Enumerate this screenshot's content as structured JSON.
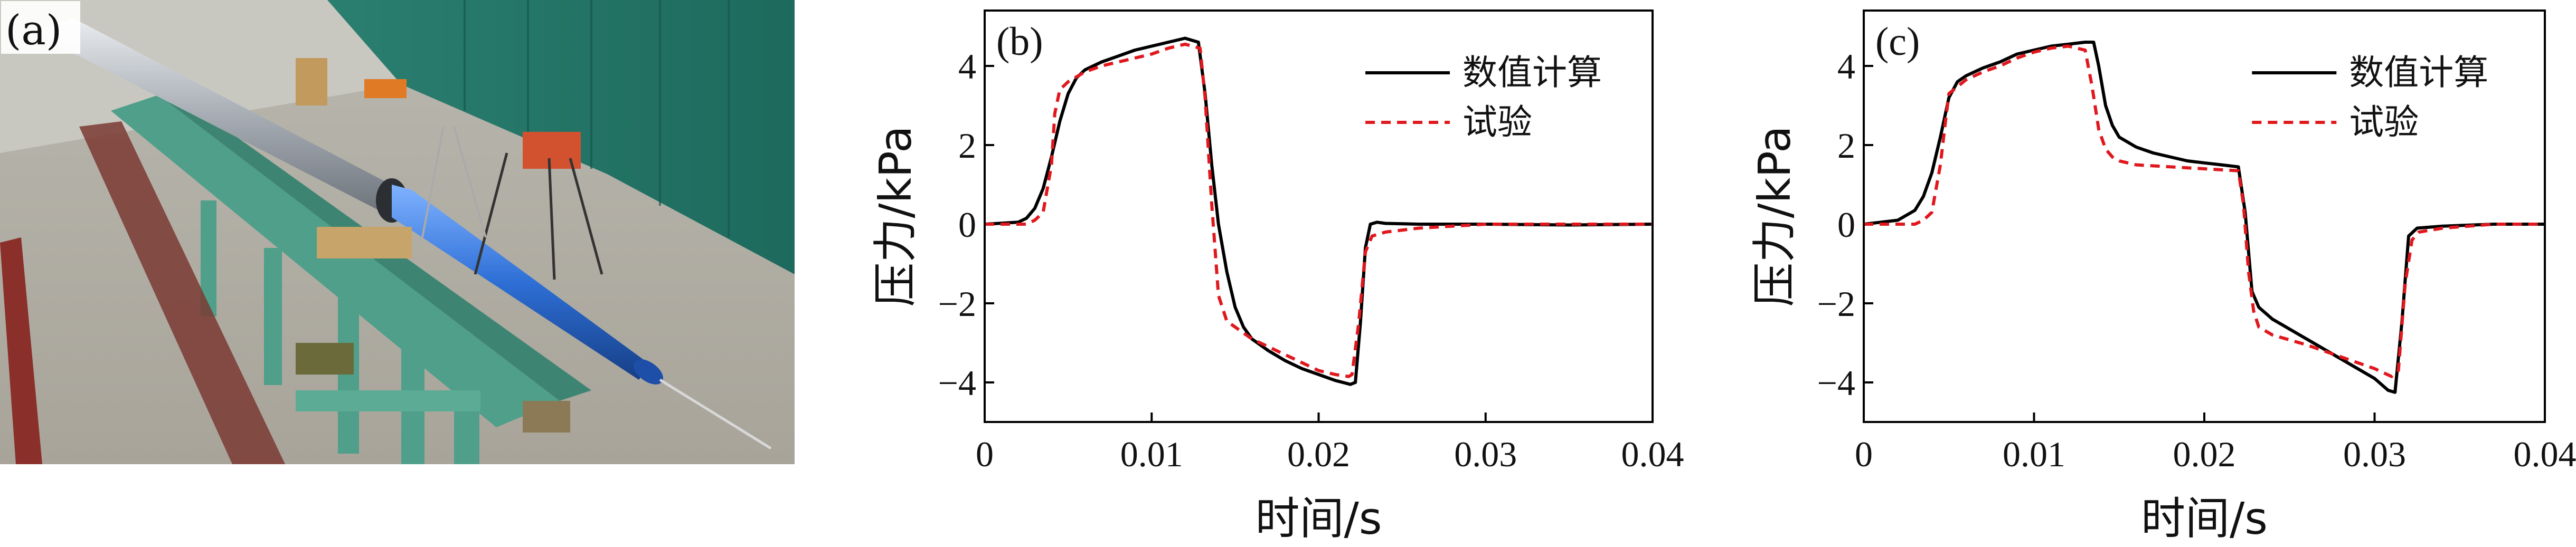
{
  "photo": {
    "label": "(a)"
  },
  "chart_data": [
    {
      "type": "line",
      "panel_label": "(b)",
      "xlabel": "时间/s",
      "ylabel": "压力/kPa",
      "xlim": [
        0,
        0.04
      ],
      "ylim": [
        -5,
        5.4
      ],
      "xticks": [
        0,
        0.01,
        0.02,
        0.03,
        0.04
      ],
      "xtick_labels": [
        "0",
        "0.01",
        "0.02",
        "0.03",
        "0.04"
      ],
      "yticks": [
        -4,
        -2,
        0,
        2,
        4
      ],
      "ytick_labels": [
        "−4",
        "−2",
        "0",
        "2",
        "4"
      ],
      "legend_position": "top-right",
      "series": [
        {
          "name": "数值计算",
          "color": "#000000",
          "style": "solid",
          "x": [
            0,
            0.002,
            0.0025,
            0.003,
            0.0035,
            0.004,
            0.0045,
            0.005,
            0.0055,
            0.006,
            0.007,
            0.008,
            0.009,
            0.01,
            0.011,
            0.012,
            0.0128,
            0.0132,
            0.0136,
            0.014,
            0.0145,
            0.015,
            0.0155,
            0.016,
            0.017,
            0.018,
            0.019,
            0.02,
            0.021,
            0.0219,
            0.0222,
            0.0225,
            0.0228,
            0.0231,
            0.0235,
            0.024,
            0.026,
            0.03,
            0.035,
            0.04
          ],
          "values": [
            0,
            0.05,
            0.15,
            0.4,
            0.9,
            1.7,
            2.6,
            3.3,
            3.7,
            3.9,
            4.1,
            4.25,
            4.4,
            4.5,
            4.6,
            4.7,
            4.6,
            3.3,
            1.5,
            0.0,
            -1.2,
            -2.1,
            -2.6,
            -2.9,
            -3.2,
            -3.45,
            -3.65,
            -3.8,
            -3.95,
            -4.05,
            -4.0,
            -2.5,
            -0.6,
            0.0,
            0.05,
            0.02,
            0.0,
            0.0,
            -0.02,
            0.0
          ]
        },
        {
          "name": "试验",
          "color": "#e0181d",
          "style": "dashed",
          "x": [
            0,
            0.0025,
            0.003,
            0.0035,
            0.004,
            0.0042,
            0.0045,
            0.005,
            0.006,
            0.007,
            0.008,
            0.009,
            0.01,
            0.011,
            0.012,
            0.0129,
            0.0132,
            0.0136,
            0.014,
            0.0145,
            0.015,
            0.016,
            0.017,
            0.018,
            0.019,
            0.02,
            0.021,
            0.0218,
            0.022,
            0.0224,
            0.0228,
            0.0232,
            0.024,
            0.026,
            0.03,
            0.035,
            0.04
          ],
          "values": [
            0,
            0.0,
            0.1,
            0.3,
            1.5,
            2.8,
            3.4,
            3.6,
            3.85,
            4.0,
            4.1,
            4.2,
            4.3,
            4.45,
            4.55,
            4.45,
            3.2,
            0.5,
            -1.8,
            -2.45,
            -2.6,
            -2.9,
            -3.1,
            -3.3,
            -3.5,
            -3.7,
            -3.8,
            -3.85,
            -3.8,
            -2.5,
            -0.7,
            -0.3,
            -0.2,
            -0.1,
            0.0,
            0.0,
            0.0
          ]
        }
      ]
    },
    {
      "type": "line",
      "panel_label": "(c)",
      "xlabel": "时间/s",
      "ylabel": "压力/kPa",
      "xlim": [
        0,
        0.04
      ],
      "ylim": [
        -5,
        5.4
      ],
      "xticks": [
        0,
        0.01,
        0.02,
        0.03,
        0.04
      ],
      "xtick_labels": [
        "0",
        "0.01",
        "0.02",
        "0.03",
        "0.04"
      ],
      "yticks": [
        -4,
        -2,
        0,
        2,
        4
      ],
      "ytick_labels": [
        "−4",
        "−2",
        "0",
        "2",
        "4"
      ],
      "legend_position": "top-right",
      "series": [
        {
          "name": "数值计算",
          "color": "#000000",
          "style": "solid",
          "x": [
            0,
            0.002,
            0.003,
            0.0035,
            0.004,
            0.0045,
            0.005,
            0.0055,
            0.006,
            0.007,
            0.008,
            0.009,
            0.01,
            0.011,
            0.012,
            0.013,
            0.0135,
            0.0138,
            0.0142,
            0.0146,
            0.015,
            0.016,
            0.017,
            0.018,
            0.019,
            0.02,
            0.021,
            0.022,
            0.0224,
            0.0228,
            0.0232,
            0.024,
            0.026,
            0.028,
            0.03,
            0.0308,
            0.0312,
            0.0316,
            0.032,
            0.0325,
            0.034,
            0.037,
            0.04
          ],
          "values": [
            0,
            0.1,
            0.35,
            0.7,
            1.3,
            2.2,
            3.2,
            3.6,
            3.75,
            3.95,
            4.1,
            4.3,
            4.4,
            4.5,
            4.55,
            4.6,
            4.6,
            4.0,
            3.0,
            2.5,
            2.2,
            1.95,
            1.8,
            1.7,
            1.6,
            1.55,
            1.5,
            1.45,
            0.3,
            -1.7,
            -2.1,
            -2.4,
            -2.9,
            -3.4,
            -3.9,
            -4.2,
            -4.25,
            -2.5,
            -0.3,
            -0.1,
            -0.05,
            0.0,
            0.0
          ]
        },
        {
          "name": "试验",
          "color": "#e0181d",
          "style": "dashed",
          "x": [
            0,
            0.003,
            0.0035,
            0.004,
            0.0045,
            0.0048,
            0.005,
            0.006,
            0.007,
            0.008,
            0.009,
            0.01,
            0.011,
            0.012,
            0.013,
            0.0134,
            0.0138,
            0.0142,
            0.0146,
            0.015,
            0.016,
            0.018,
            0.02,
            0.022,
            0.0223,
            0.0226,
            0.0229,
            0.0232,
            0.024,
            0.026,
            0.028,
            0.03,
            0.031,
            0.0314,
            0.0318,
            0.0322,
            0.0326,
            0.034,
            0.037,
            0.04
          ],
          "values": [
            0,
            0.0,
            0.1,
            0.3,
            1.5,
            2.6,
            3.3,
            3.65,
            3.85,
            4.0,
            4.2,
            4.35,
            4.45,
            4.5,
            4.4,
            3.5,
            2.4,
            1.9,
            1.7,
            1.6,
            1.5,
            1.45,
            1.4,
            1.35,
            0.5,
            -1.2,
            -2.2,
            -2.6,
            -2.8,
            -3.05,
            -3.35,
            -3.65,
            -3.85,
            -3.7,
            -1.5,
            -0.4,
            -0.2,
            -0.1,
            0.0,
            0.0
          ]
        }
      ]
    }
  ]
}
